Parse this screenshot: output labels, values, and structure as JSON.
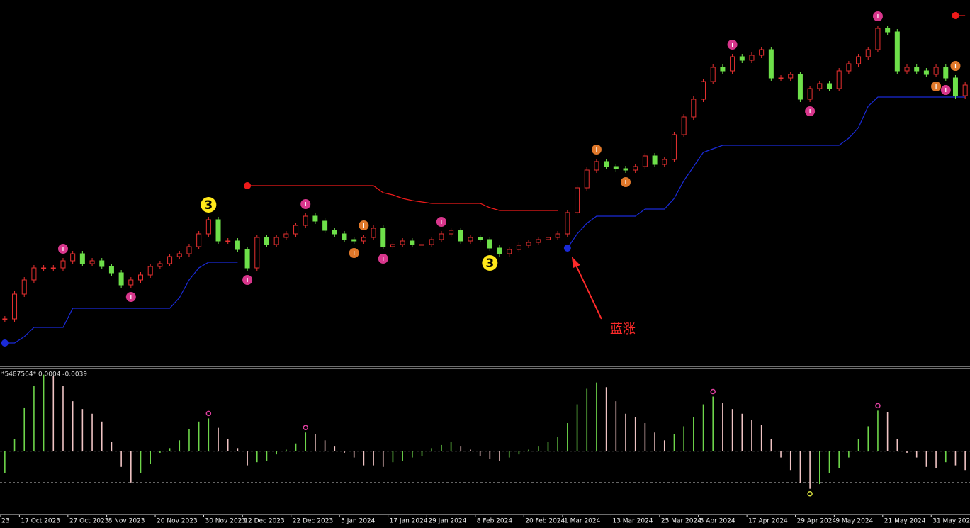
{
  "chart_data": [
    {
      "type": "candlestick",
      "categories": [
        "23",
        null,
        "17 Oct 2023",
        null,
        null,
        null,
        null,
        "27 Oct 2023",
        null,
        null,
        null,
        "8 Nov 2023",
        null,
        null,
        null,
        null,
        "20 Nov 2023",
        null,
        null,
        null,
        null,
        "30 Nov 2023",
        null,
        null,
        null,
        "12 Dec 2023",
        null,
        null,
        null,
        null,
        "22 Dec 2023",
        null,
        null,
        null,
        null,
        "5 Jan 2024",
        null,
        null,
        null,
        null,
        "17 Jan 2024",
        null,
        null,
        null,
        "29 Jan 2024",
        null,
        null,
        null,
        null,
        "8 Feb 2024",
        null,
        null,
        null,
        null,
        "20 Feb 2024",
        null,
        null,
        null,
        "1 Mar 2024",
        null,
        null,
        null,
        null,
        "13 Mar 2024",
        null,
        null,
        null,
        null,
        "25 Mar 2024",
        null,
        null,
        null,
        "5 Apr 2024",
        null,
        null,
        null,
        null,
        "17 Apr 2024",
        null,
        null,
        null,
        null,
        "29 Apr 2024",
        null,
        null,
        null,
        "9 May 2024",
        null,
        null,
        null,
        null,
        "21 May 2024",
        null,
        null,
        null,
        null,
        "31 May 2024",
        null,
        null,
        null
      ],
      "values": [
        13,
        20,
        24,
        27.4,
        27.4,
        27.4,
        29.4,
        31.4,
        28.6,
        29.4,
        27.8,
        26,
        22.6,
        24,
        25.4,
        27.8,
        28.6,
        30.6,
        31.4,
        33.4,
        37,
        41,
        35,
        35,
        32.6,
        27.4,
        36,
        34,
        36,
        37,
        39.4,
        42,
        40.6,
        38,
        37,
        35.4,
        35,
        36,
        38.6,
        33.4,
        34,
        35,
        34,
        34,
        35.4,
        37,
        38,
        35,
        36,
        35.4,
        33,
        31.4,
        32.6,
        33.8,
        34.6,
        35.4,
        36,
        37,
        43,
        50,
        55,
        57.4,
        56,
        55.4,
        55,
        56,
        59,
        56.6,
        58,
        65,
        70,
        75,
        80,
        84,
        83,
        87,
        86,
        87.4,
        89,
        81,
        81,
        82,
        75,
        78,
        79.4,
        78,
        83,
        85,
        87,
        89,
        95,
        94,
        83,
        84,
        83,
        82,
        84,
        81,
        76,
        79
      ],
      "up_color": "#e83030",
      "down_color": "#6ee04a",
      "ylim": [
        0,
        103
      ],
      "support": {
        "color": "#1a2ad8",
        "values": [
          6.2,
          6.2,
          8,
          10.6,
          10.6,
          10.6,
          10.6,
          16,
          16,
          16,
          16,
          16,
          16,
          16,
          16,
          16,
          16,
          16,
          19,
          24,
          27.4,
          29,
          29,
          29,
          29,
          null,
          null,
          null,
          null,
          null,
          null,
          null,
          null,
          null,
          null,
          null,
          null,
          null,
          null,
          null,
          null,
          null,
          null,
          null,
          null,
          null,
          null,
          null,
          null,
          null,
          null,
          null,
          null,
          null,
          null,
          null,
          null,
          null,
          33,
          37,
          40,
          42,
          42,
          42,
          42,
          42,
          44,
          44,
          44,
          47,
          52,
          56,
          60,
          61,
          62,
          62,
          62,
          62,
          62,
          62,
          62,
          62,
          62,
          62,
          62,
          62,
          62,
          64,
          67,
          73,
          75.6,
          75.6,
          75.6,
          75.6,
          75.6,
          75.6,
          75.6,
          75.6,
          75.6,
          75.6
        ]
      },
      "resistance": {
        "color": "#ee1a1a",
        "values": [
          null,
          null,
          null,
          null,
          null,
          null,
          null,
          null,
          null,
          null,
          null,
          null,
          null,
          null,
          null,
          null,
          null,
          null,
          null,
          null,
          null,
          null,
          null,
          null,
          null,
          50.6,
          50.6,
          50.6,
          50.6,
          50.6,
          50.6,
          50.6,
          50.6,
          50.6,
          50.6,
          50.6,
          50.6,
          50.6,
          50.6,
          48.6,
          48,
          47,
          46.4,
          46,
          45.6,
          45.6,
          45.6,
          45.6,
          45.6,
          45.6,
          44.4,
          43.6,
          43.6,
          43.6,
          43.6,
          43.6,
          43.6,
          43.6,
          null,
          null,
          null,
          null,
          null,
          null,
          null,
          null,
          null,
          null,
          null,
          null,
          null,
          null,
          null,
          null,
          null,
          null,
          null,
          null,
          null,
          null,
          null,
          null,
          null,
          null,
          null,
          null,
          null,
          null,
          null,
          null,
          null,
          null,
          null,
          null,
          null,
          null,
          null,
          null,
          98.6,
          98.6
        ]
      },
      "signals": [
        {
          "index": 21,
          "side": "above",
          "color": "#ffe81a",
          "label": "3"
        },
        {
          "index": 50,
          "side": "below",
          "color": "#ffe81a",
          "label": "3"
        },
        {
          "index": 6,
          "side": "above",
          "color": "#d8368c"
        },
        {
          "index": 13,
          "side": "below",
          "color": "#d8368c"
        },
        {
          "index": 25,
          "side": "below",
          "color": "#d8368c"
        },
        {
          "index": 31,
          "side": "above",
          "color": "#d8368c"
        },
        {
          "index": 37,
          "side": "above",
          "color": "#e0782a"
        },
        {
          "index": 36,
          "side": "below",
          "color": "#e0782a"
        },
        {
          "index": 39,
          "side": "below",
          "color": "#d8368c"
        },
        {
          "index": 45,
          "side": "above",
          "color": "#d8368c"
        },
        {
          "index": 61,
          "side": "above",
          "color": "#e0782a"
        },
        {
          "index": 64,
          "side": "below",
          "color": "#e0782a"
        },
        {
          "index": 75,
          "side": "above",
          "color": "#d8368c"
        },
        {
          "index": 83,
          "side": "below",
          "color": "#d8368c"
        },
        {
          "index": 90,
          "side": "above",
          "color": "#d8368c"
        },
        {
          "index": 96,
          "side": "below",
          "color": "#e0782a"
        },
        {
          "index": 98,
          "side": "above",
          "color": "#e0782a"
        },
        {
          "index": 97,
          "side": "below",
          "color": "#d8368c"
        }
      ],
      "annotation": {
        "text": "蓝涨",
        "index": 58,
        "color": "#ff2a2a"
      }
    },
    {
      "type": "bar",
      "title": "*5487564* 0.0004 -0.0039",
      "values": [
        -0.7,
        0.4,
        1.4,
        2.1,
        2.45,
        2.4,
        2.1,
        1.6,
        1.35,
        1.2,
        0.95,
        0.3,
        -0.5,
        -1,
        -0.7,
        -0.4,
        -0.05,
        0.1,
        0.35,
        0.7,
        0.95,
        1.05,
        0.75,
        0.4,
        0.1,
        -0.45,
        -0.35,
        -0.3,
        -0.1,
        0.05,
        0.25,
        0.6,
        0.55,
        0.35,
        0.15,
        -0.05,
        -0.2,
        -0.45,
        -0.45,
        -0.5,
        -0.35,
        -0.3,
        -0.2,
        -0.15,
        0.1,
        0.2,
        0.3,
        0.15,
        0.05,
        -0.15,
        -0.25,
        -0.3,
        -0.2,
        -0.1,
        0.05,
        0.15,
        0.3,
        0.45,
        0.9,
        1.5,
        2,
        2.2,
        2.05,
        1.6,
        1.2,
        1.1,
        0.9,
        0.6,
        0.35,
        0.55,
        0.8,
        1.1,
        1.5,
        1.75,
        1.55,
        1.35,
        1.2,
        1,
        0.85,
        0.4,
        -0.2,
        -0.6,
        -1,
        -1.2,
        -1.05,
        -0.7,
        -0.55,
        -0.2,
        0.4,
        0.8,
        1.3,
        1.25,
        0.4,
        -0.05,
        -0.2,
        -0.5,
        -0.55,
        -0.35,
        -0.45,
        -0.6
      ],
      "rise_color": "#6ed64a",
      "fall_color": "#f0c4c4",
      "ylim": [
        -2,
        2.6
      ],
      "levels": [
        1,
        -1
      ],
      "level_color": "#c8c8c8",
      "signals": [
        {
          "index": 21,
          "side": "above",
          "color": "#e040a0"
        },
        {
          "index": 31,
          "side": "above",
          "color": "#e040a0"
        },
        {
          "index": 73,
          "side": "above",
          "color": "#e040a0"
        },
        {
          "index": 90,
          "side": "above",
          "color": "#e040a0"
        },
        {
          "index": 83,
          "side": "below",
          "color": "#d8e040"
        }
      ]
    }
  ]
}
